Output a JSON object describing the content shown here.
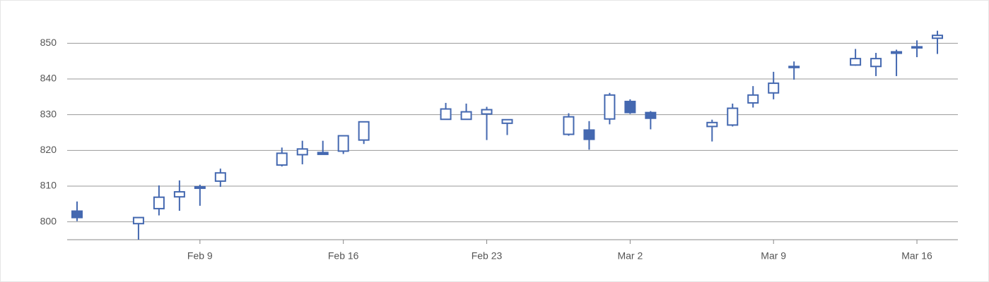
{
  "chart_data": {
    "type": "candlestick",
    "color": "#4468b0",
    "grid": true,
    "x": [
      "Feb 3",
      "Feb 6",
      "Feb 7",
      "Feb 8",
      "Feb 9",
      "Feb 10",
      "Feb 13",
      "Feb 14",
      "Feb 15",
      "Feb 16",
      "Feb 17",
      "Feb 21",
      "Feb 22",
      "Feb 23",
      "Feb 24",
      "Feb 27",
      "Feb 28",
      "Mar 1",
      "Mar 2",
      "Mar 3",
      "Mar 6",
      "Mar 7",
      "Mar 8",
      "Mar 9",
      "Mar 10",
      "Mar 13",
      "Mar 14",
      "Mar 15",
      "Mar 16",
      "Mar 17"
    ],
    "open": [
      803,
      799.5,
      803.7,
      807,
      809.4,
      811.4,
      815.9,
      818.8,
      819.4,
      819.8,
      822.9,
      828.7,
      828.7,
      830.2,
      827.6,
      824.5,
      825.7,
      828.8,
      833.7,
      830.6,
      826.7,
      827.1,
      833.3,
      836.1,
      843.2,
      843.9,
      843.5,
      847.2,
      848.8,
      851.4
    ],
    "high": [
      805.7,
      801.3,
      810.2,
      811.6,
      810.4,
      814.9,
      820.8,
      822.7,
      822.7,
      824.1,
      828,
      833.3,
      833.1,
      832.2,
      828.7,
      830.4,
      828.2,
      836.1,
      834.3,
      831,
      828.6,
      833.1,
      838,
      842,
      844.9,
      848.4,
      847.3,
      848.2,
      850.8,
      853.5
    ],
    "low": [
      800.2,
      795,
      801.8,
      803.1,
      804.5,
      809.8,
      815.5,
      816.1,
      818.8,
      819,
      821.8,
      828.6,
      828.6,
      822.9,
      824.3,
      824.1,
      820.2,
      827.3,
      830.2,
      825.9,
      822.5,
      826.7,
      832,
      834.3,
      839.8,
      843.7,
      840.8,
      840.8,
      846.1,
      847
    ],
    "close": [
      801.2,
      801.2,
      806.9,
      808.4,
      809.8,
      813.7,
      819.2,
      820.4,
      818.9,
      824.1,
      828,
      831.6,
      830.8,
      831.4,
      828.6,
      829.4,
      823.1,
      835.5,
      830.6,
      829,
      827.8,
      831.8,
      835.5,
      838.8,
      843.5,
      845.7,
      845.7,
      847.6,
      849,
      852.2
    ],
    "xlim": [
      "Feb 2",
      "Mar 18"
    ],
    "xticks": [
      "Feb 9",
      "Feb 16",
      "Feb 23",
      "Mar 2",
      "Mar 9",
      "Mar 16"
    ],
    "ylim": [
      795,
      855
    ],
    "yticks": [
      800,
      810,
      820,
      830,
      840,
      850
    ]
  }
}
